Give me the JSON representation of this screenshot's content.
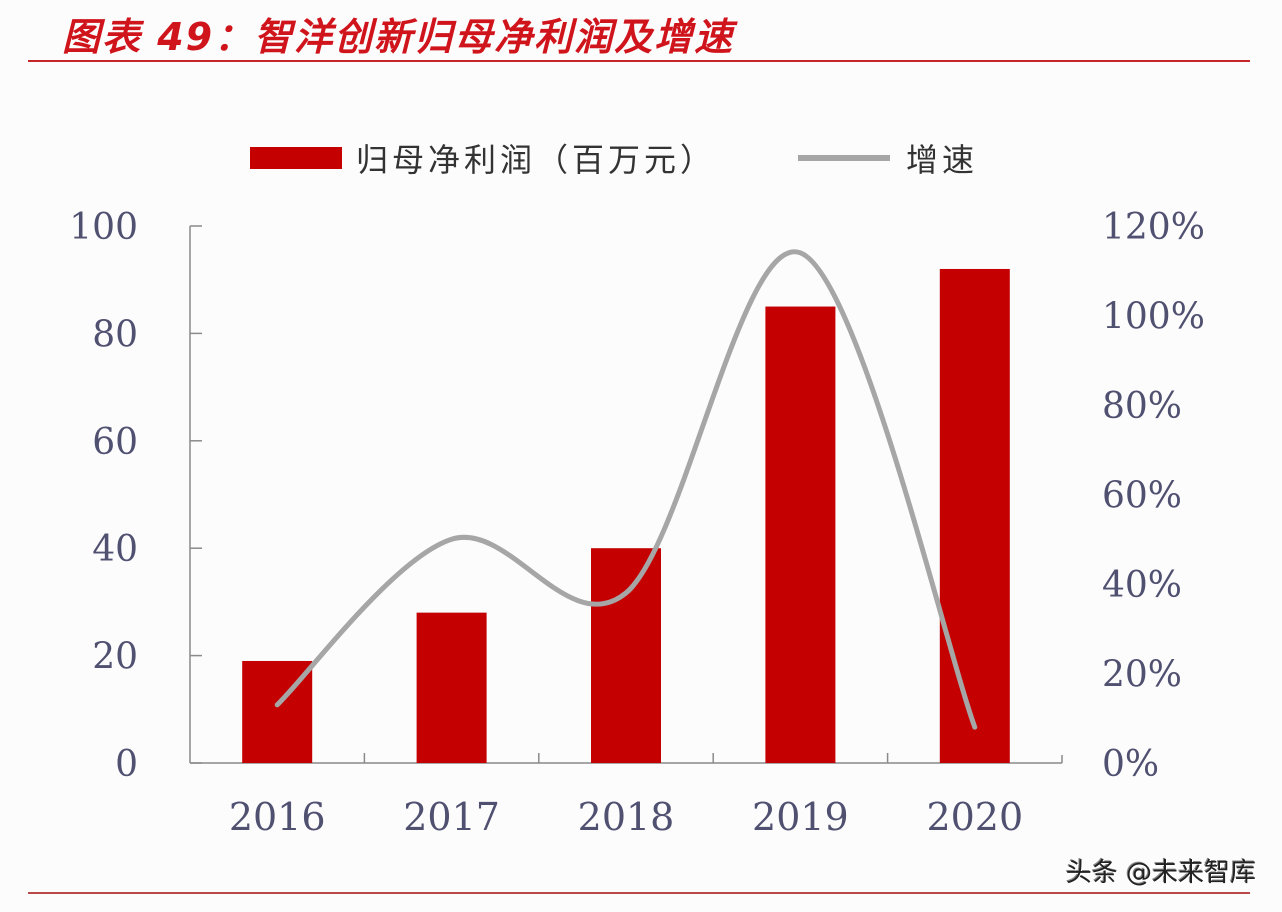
{
  "title": "图表 49：智洋创新归母净利润及增速",
  "watermark": "头条 @未来智库",
  "legend": {
    "bar_label": "归母净利润（百万元）",
    "line_label": "增速"
  },
  "colors": {
    "title": "#d0141c",
    "bar": "#c40000",
    "line": "#a6a6a6",
    "rule": "#c4262a"
  },
  "chart_data": {
    "type": "bar+line",
    "title": "智洋创新归母净利润及增速",
    "categories": [
      "2016",
      "2017",
      "2018",
      "2019",
      "2020"
    ],
    "series": [
      {
        "name": "归母净利润（百万元）",
        "type": "bar",
        "axis": "left",
        "values": [
          19,
          28,
          40,
          85,
          92
        ]
      },
      {
        "name": "增速",
        "type": "line",
        "axis": "right",
        "smooth": true,
        "values": [
          13,
          50,
          38,
          114,
          8
        ],
        "unit": "%"
      }
    ],
    "left_axis": {
      "ylim": [
        0,
        100
      ],
      "ticks": [
        "0",
        "20",
        "40",
        "60",
        "80",
        "100"
      ]
    },
    "right_axis": {
      "ylim": [
        0,
        120
      ],
      "ticks": [
        "0%",
        "20%",
        "40%",
        "60%",
        "80%",
        "100%",
        "120%"
      ]
    },
    "xlabel": "",
    "ylabel": "",
    "grid": false,
    "legend_position": "top"
  }
}
